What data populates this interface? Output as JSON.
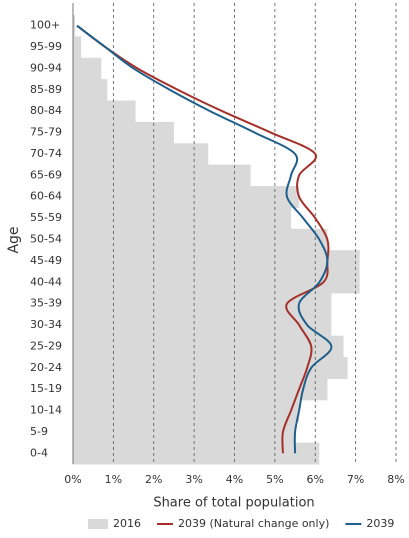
{
  "chart_data": {
    "type": "bar",
    "xlabel": "Share of total population",
    "ylabel": "Age",
    "categories": [
      "100+",
      "95-99",
      "90-94",
      "85-89",
      "80-84",
      "75-79",
      "70-74",
      "65-69",
      "60-64",
      "55-59",
      "50-54",
      "45-49",
      "40-44",
      "35-39",
      "30-34",
      "25-29",
      "20-24",
      "15-19",
      "10-14",
      "5-9",
      "0-4"
    ],
    "series": [
      {
        "name": "2016",
        "type": "bar",
        "color": "#d9d9d9",
        "values": [
          0.05,
          0.2,
          0.7,
          0.85,
          1.55,
          2.5,
          3.35,
          4.4,
          5.6,
          5.4,
          6.3,
          7.1,
          7.1,
          6.4,
          6.4,
          6.7,
          6.8,
          6.3,
          5.6,
          5.5,
          6.1
        ]
      },
      {
        "name": "2039 (Natural change only)",
        "type": "line",
        "color": "#a5302a",
        "values": [
          0.1,
          0.8,
          1.6,
          2.6,
          3.7,
          4.9,
          6.0,
          5.6,
          5.6,
          6.0,
          6.3,
          6.3,
          6.2,
          5.3,
          5.6,
          5.9,
          5.8,
          5.6,
          5.4,
          5.2,
          5.2
        ]
      },
      {
        "name": "2039",
        "type": "line",
        "color": "#1f5f8b",
        "values": [
          0.1,
          0.8,
          1.5,
          2.4,
          3.4,
          4.5,
          5.5,
          5.4,
          5.3,
          5.7,
          6.1,
          6.3,
          6.1,
          5.6,
          5.8,
          6.4,
          5.9,
          5.7,
          5.6,
          5.5,
          5.5
        ]
      }
    ],
    "xlim": [
      0,
      8
    ],
    "xticks": [
      {
        "value": 0,
        "label": "0%"
      },
      {
        "value": 1,
        "label": "1%"
      },
      {
        "value": 2,
        "label": "2%"
      },
      {
        "value": 3,
        "label": "3%"
      },
      {
        "value": 4,
        "label": "4%"
      },
      {
        "value": 5,
        "label": "5%"
      },
      {
        "value": 6,
        "label": "6%"
      },
      {
        "value": 7,
        "label": "7%"
      },
      {
        "value": 8,
        "label": "8%"
      }
    ],
    "grid": true
  }
}
